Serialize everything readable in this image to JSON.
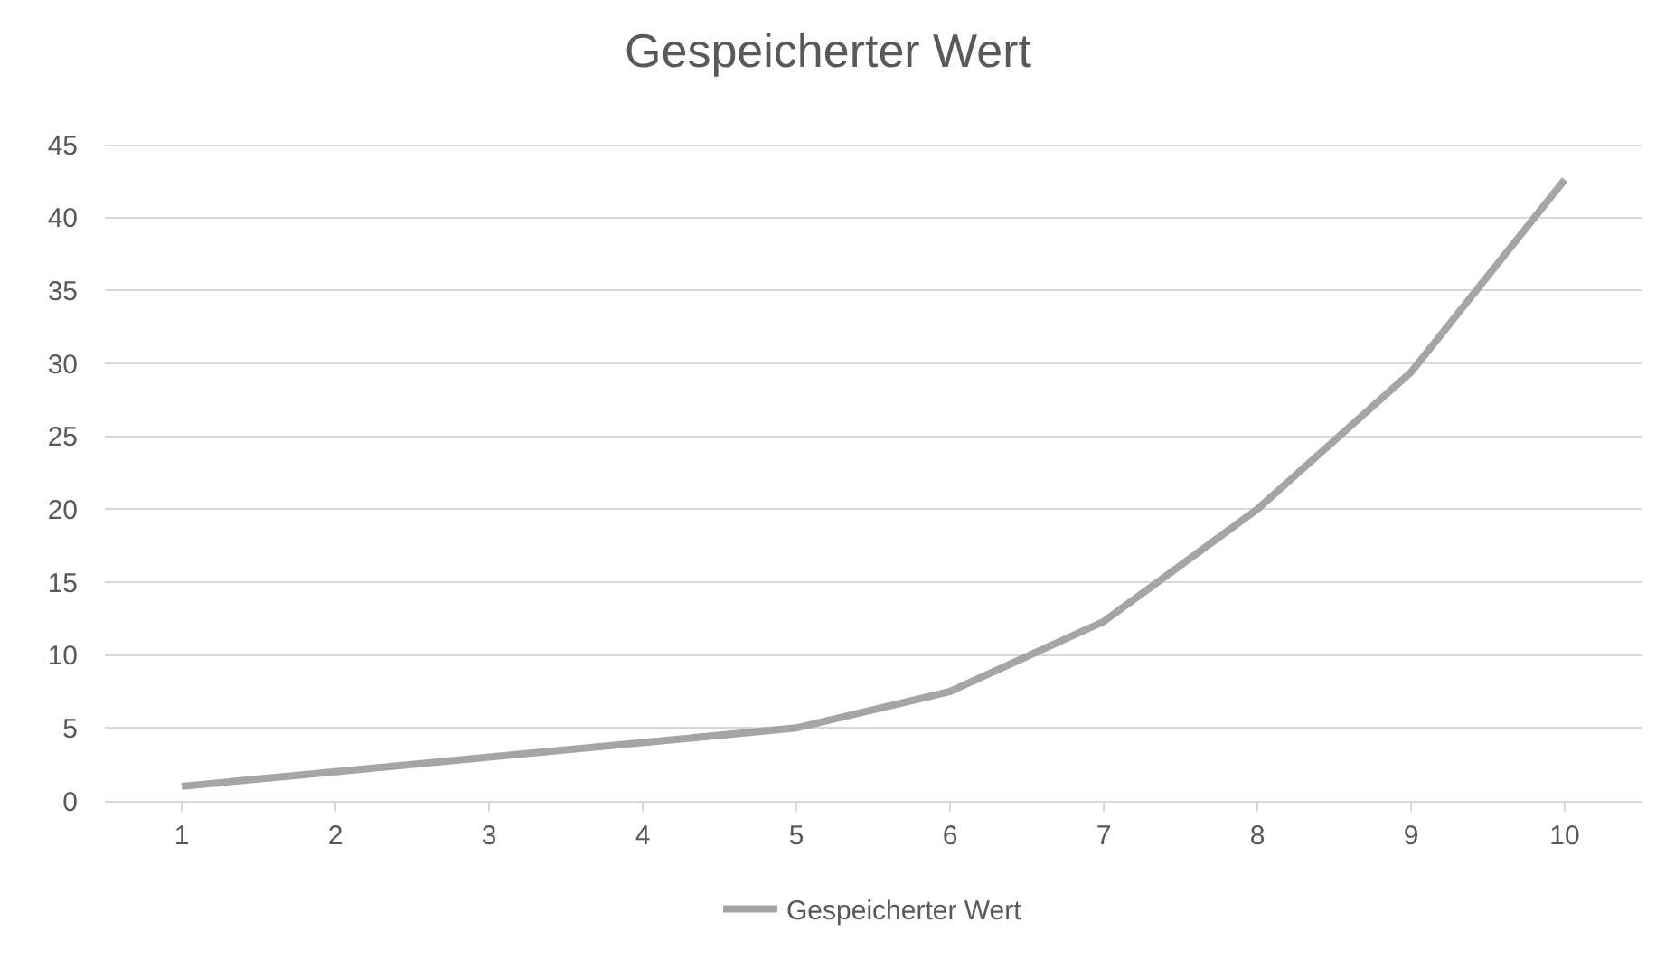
{
  "chart_data": {
    "type": "line",
    "title": "Gespeicherter Wert",
    "categories": [
      "1",
      "2",
      "3",
      "4",
      "5",
      "6",
      "7",
      "8",
      "9",
      "10"
    ],
    "series": [
      {
        "name": "Gespeicherter Wert",
        "color": "#a5a5a5",
        "values": [
          1,
          2,
          3,
          4,
          5,
          7.5,
          12.3,
          20,
          29.4,
          42.6
        ]
      }
    ],
    "ylim": [
      0,
      45
    ],
    "yticks": [
      0,
      5,
      10,
      15,
      20,
      25,
      30,
      35,
      40,
      45
    ],
    "grid": "y",
    "legend": "bottom",
    "marker": "none",
    "line_style": "solid"
  }
}
